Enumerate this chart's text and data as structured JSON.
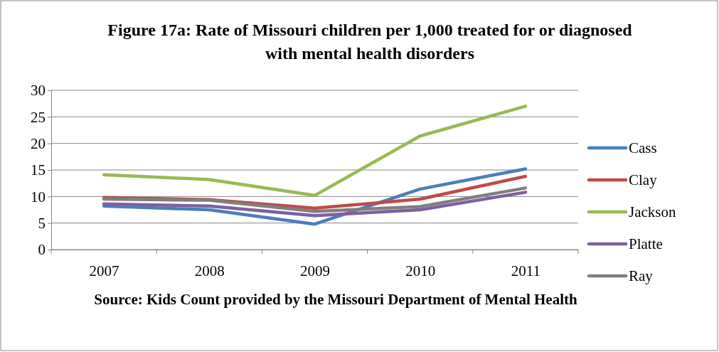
{
  "chart_data": {
    "type": "line",
    "title": "Figure 17a: Rate of Missouri children per 1,000 treated for or diagnosed with mental health disorders",
    "categories": [
      "2007",
      "2008",
      "2009",
      "2010",
      "2011"
    ],
    "series": [
      {
        "name": "Cass",
        "color": "#4a7ebb",
        "values": [
          8.2,
          7.5,
          4.8,
          11.4,
          15.2
        ]
      },
      {
        "name": "Clay",
        "color": "#be4b48",
        "values": [
          9.8,
          9.4,
          7.8,
          9.5,
          13.8
        ]
      },
      {
        "name": "Jackson",
        "color": "#98b954",
        "values": [
          14.1,
          13.2,
          10.2,
          21.4,
          27.0
        ]
      },
      {
        "name": "Platte",
        "color": "#7d60a0",
        "values": [
          8.6,
          8.2,
          6.4,
          7.5,
          10.8
        ]
      },
      {
        "name": "Ray",
        "color": "#7f7f7f",
        "values": [
          9.5,
          9.3,
          7.2,
          8.1,
          11.6
        ]
      }
    ],
    "ylim": [
      0,
      30
    ],
    "yticks": [
      0,
      5,
      10,
      15,
      20,
      25,
      30
    ],
    "grid": "y",
    "legend": "right",
    "marker": "none",
    "line_style": "solid",
    "annotations": [
      "Source: Kids Count provided by the Missouri Department of Mental Health"
    ]
  }
}
